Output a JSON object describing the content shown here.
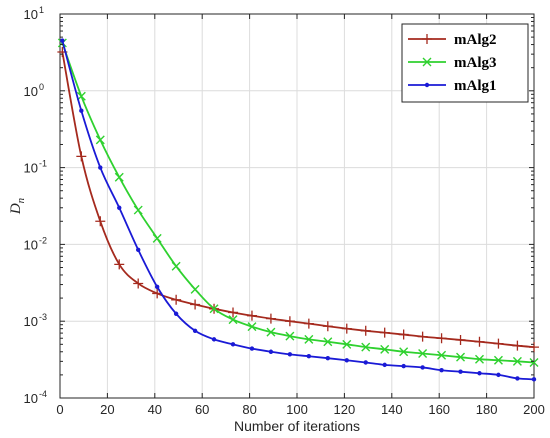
{
  "chart_data": {
    "type": "line",
    "xlabel": "Number of iterations",
    "ylabel": "D",
    "ylabel_sub": "n",
    "xlim": [
      0,
      200
    ],
    "ylim": [
      0.0001,
      10
    ],
    "yscale": "log",
    "grid": true,
    "legend_position": "top-right",
    "x_ticks": [
      "0",
      "20",
      "40",
      "60",
      "80",
      "100",
      "120",
      "140",
      "160",
      "180",
      "200"
    ],
    "y_ticks": [
      {
        "base": "10",
        "exp": "1"
      },
      {
        "base": "10",
        "exp": "0"
      },
      {
        "base": "10",
        "exp": "-1"
      },
      {
        "base": "10",
        "exp": "-2"
      },
      {
        "base": "10",
        "exp": "-3"
      },
      {
        "base": "10",
        "exp": "-4"
      }
    ],
    "series": [
      {
        "name": "mAlg2",
        "color": "#a52a1e",
        "marker": "plus",
        "x": [
          1,
          9,
          17,
          25,
          33,
          41,
          49,
          57,
          65,
          73,
          81,
          89,
          97,
          105,
          113,
          121,
          129,
          137,
          145,
          153,
          161,
          169,
          177,
          185,
          193,
          200
        ],
        "y": [
          3.2,
          0.14,
          0.02,
          0.0055,
          0.0031,
          0.0023,
          0.0019,
          0.00165,
          0.00145,
          0.0013,
          0.00118,
          0.00108,
          0.001,
          0.00093,
          0.00086,
          0.0008,
          0.00075,
          0.00071,
          0.00067,
          0.00063,
          0.0006,
          0.00057,
          0.00054,
          0.00051,
          0.00048,
          0.00046
        ]
      },
      {
        "name": "mAlg3",
        "color": "#2fd12f",
        "marker": "x",
        "x": [
          1,
          9,
          17,
          25,
          33,
          41,
          49,
          57,
          65,
          73,
          81,
          89,
          97,
          105,
          113,
          121,
          129,
          137,
          145,
          153,
          161,
          169,
          177,
          185,
          193,
          200
        ],
        "y": [
          4.2,
          0.85,
          0.23,
          0.075,
          0.028,
          0.012,
          0.0052,
          0.0026,
          0.00145,
          0.00105,
          0.00085,
          0.00072,
          0.00064,
          0.00058,
          0.00054,
          0.0005,
          0.00046,
          0.00043,
          0.0004,
          0.00038,
          0.00036,
          0.00034,
          0.00032,
          0.00031,
          0.0003,
          0.00029
        ]
      },
      {
        "name": "mAlg1",
        "color": "#1a1ad6",
        "marker": "dot",
        "x": [
          1,
          9,
          17,
          25,
          33,
          41,
          49,
          57,
          65,
          73,
          81,
          89,
          97,
          105,
          113,
          121,
          129,
          137,
          145,
          153,
          161,
          169,
          177,
          185,
          193,
          200
        ],
        "y": [
          4.5,
          0.55,
          0.1,
          0.03,
          0.0085,
          0.0028,
          0.00125,
          0.00075,
          0.00058,
          0.0005,
          0.00044,
          0.0004,
          0.00037,
          0.00035,
          0.00033,
          0.00031,
          0.00029,
          0.00027,
          0.00026,
          0.00025,
          0.00023,
          0.00022,
          0.00021,
          0.0002,
          0.00018,
          0.000175
        ]
      }
    ]
  }
}
